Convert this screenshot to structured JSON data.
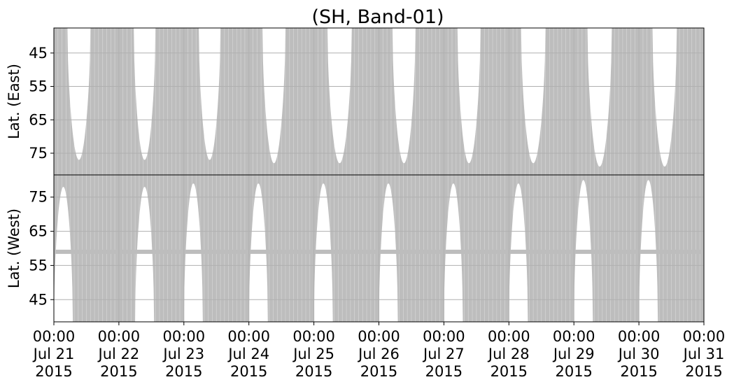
{
  "chart_data": {
    "type": "area",
    "title": "(SH, Band-01)",
    "x": {
      "range": [
        "2015-07-21 00:00",
        "2015-07-31 00:00"
      ],
      "ticks": [
        {
          "value": "2015-07-21 00:00",
          "label": [
            "00:00",
            "Jul 21",
            "2015"
          ]
        },
        {
          "value": "2015-07-22 00:00",
          "label": [
            "00:00",
            "Jul 22",
            "2015"
          ]
        },
        {
          "value": "2015-07-23 00:00",
          "label": [
            "00:00",
            "Jul 23",
            "2015"
          ]
        },
        {
          "value": "2015-07-24 00:00",
          "label": [
            "00:00",
            "Jul 24",
            "2015"
          ]
        },
        {
          "value": "2015-07-25 00:00",
          "label": [
            "00:00",
            "Jul 25",
            "2015"
          ]
        },
        {
          "value": "2015-07-26 00:00",
          "label": [
            "00:00",
            "Jul 26",
            "2015"
          ]
        },
        {
          "value": "2015-07-27 00:00",
          "label": [
            "00:00",
            "Jul 27",
            "2015"
          ]
        },
        {
          "value": "2015-07-28 00:00",
          "label": [
            "00:00",
            "Jul 28",
            "2015"
          ]
        },
        {
          "value": "2015-07-29 00:00",
          "label": [
            "00:00",
            "Jul 29",
            "2015"
          ]
        },
        {
          "value": "2015-07-30 00:00",
          "label": [
            "00:00",
            "Jul 30",
            "2015"
          ]
        },
        {
          "value": "2015-07-31 00:00",
          "label": [
            "00:00",
            "Jul 31",
            "2015"
          ]
        }
      ]
    },
    "panels": [
      {
        "name": "east",
        "ylabel": "Lat. (East)",
        "ylim": [
          37.5,
          81.5
        ],
        "inverted": true,
        "yticks": [
          45,
          55,
          65,
          75
        ],
        "grid": true,
        "color": "#bdbdbd",
        "gaps": [
          {
            "start": "2015-07-21 05:00",
            "end": "2015-07-21 13:30",
            "min_lat": 77
          },
          {
            "start": "2015-07-22 05:30",
            "end": "2015-07-22 13:30",
            "min_lat": 77
          },
          {
            "start": "2015-07-23 05:30",
            "end": "2015-07-23 13:30",
            "min_lat": 77
          },
          {
            "start": "2015-07-24 05:00",
            "end": "2015-07-24 13:30",
            "min_lat": 78
          },
          {
            "start": "2015-07-25 05:00",
            "end": "2015-07-25 14:00",
            "min_lat": 78
          },
          {
            "start": "2015-07-26 05:00",
            "end": "2015-07-26 13:30",
            "min_lat": 78
          },
          {
            "start": "2015-07-27 05:00",
            "end": "2015-07-27 13:30",
            "min_lat": 78
          },
          {
            "start": "2015-07-28 04:30",
            "end": "2015-07-28 13:30",
            "min_lat": 78
          },
          {
            "start": "2015-07-29 05:00",
            "end": "2015-07-29 14:00",
            "min_lat": 79
          },
          {
            "start": "2015-07-30 05:00",
            "end": "2015-07-30 14:00",
            "min_lat": 79
          }
        ]
      },
      {
        "name": "west",
        "ylabel": "Lat. (West)",
        "ylim": [
          38.5,
          81.5
        ],
        "inverted": false,
        "yticks": [
          45,
          55,
          65,
          75
        ],
        "grid": true,
        "color": "#bdbdbd",
        "band_lat": 59,
        "gaps": [
          {
            "start": "2015-07-21 00:00",
            "end": "2015-07-21 07:00",
            "max_lat": 78
          },
          {
            "start": "2015-07-22 06:00",
            "end": "2015-07-22 13:00",
            "max_lat": 78
          },
          {
            "start": "2015-07-23 00:00",
            "end": "2015-07-23 07:00",
            "max_lat": 79
          },
          {
            "start": "2015-07-24 00:00",
            "end": "2015-07-24 07:00",
            "max_lat": 79
          },
          {
            "start": "2015-07-25 00:00",
            "end": "2015-07-25 07:00",
            "max_lat": 79
          },
          {
            "start": "2015-07-26 00:00",
            "end": "2015-07-26 07:00",
            "max_lat": 79
          },
          {
            "start": "2015-07-27 00:00",
            "end": "2015-07-27 07:00",
            "max_lat": 79
          },
          {
            "start": "2015-07-28 00:00",
            "end": "2015-07-28 07:00",
            "max_lat": 79
          },
          {
            "start": "2015-07-29 00:00",
            "end": "2015-07-29 07:00",
            "max_lat": 80
          },
          {
            "start": "2015-07-30 00:00",
            "end": "2015-07-30 07:00",
            "max_lat": 80
          }
        ]
      }
    ]
  }
}
